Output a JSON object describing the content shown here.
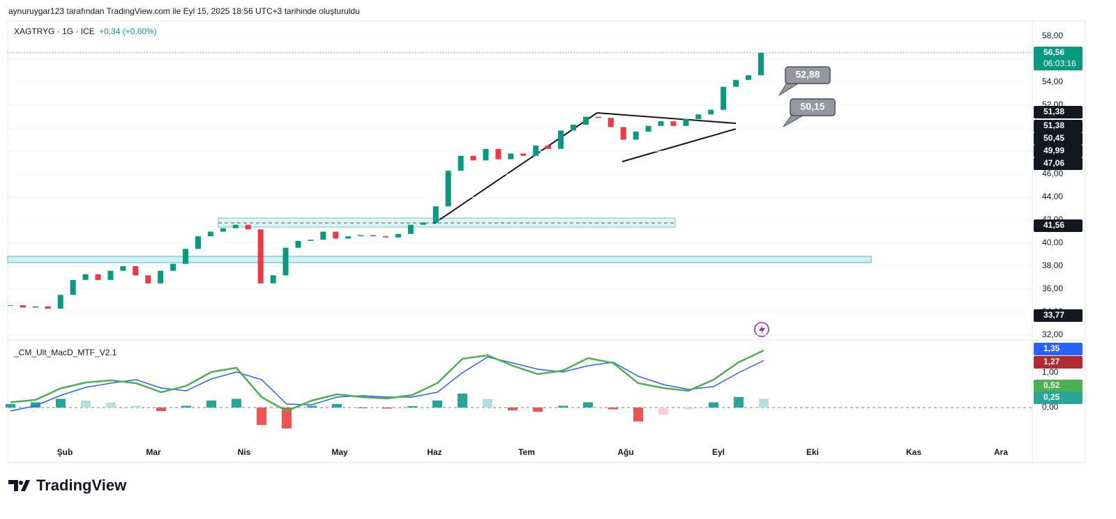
{
  "header": {
    "caption": "aynuruygar123 tarafından TradingView.com ile Eyl 15, 2025 18:56 UTC+3 tarihinde oluşturuldu"
  },
  "legend": {
    "symbol": "XAGTRYG · 1G · ICE",
    "change": "+0,34 (+0,60%)"
  },
  "chart_data": {
    "type": "candlestick",
    "ylim": [
      31.64,
      58.73
    ],
    "yticks": [
      {
        "value": 58,
        "label": "58,00"
      },
      {
        "value": 56,
        "label": "56,00"
      },
      {
        "value": 54,
        "label": "54,00"
      },
      {
        "value": 52,
        "label": "52,00"
      },
      {
        "value": 50,
        "label": "50,00"
      },
      {
        "value": 48,
        "label": "48,00"
      },
      {
        "value": 46,
        "label": "46,00"
      },
      {
        "value": 44,
        "label": "44,00"
      },
      {
        "value": 42,
        "label": "42,00"
      },
      {
        "value": 40,
        "label": "40,00"
      },
      {
        "value": 38,
        "label": "38,00"
      },
      {
        "value": 36,
        "label": "36,00"
      },
      {
        "value": 34,
        "label": "34,00"
      },
      {
        "value": 32,
        "label": "32,00"
      }
    ],
    "up_color": "#089981",
    "down_color": "#f23645",
    "closes": [
      34.6,
      34.4,
      34.5,
      34.3,
      35.5,
      36.8,
      37.3,
      36.8,
      37.6,
      38.0,
      37.2,
      36.5,
      37.6,
      38.2,
      39.5,
      40.6,
      41.0,
      41.3,
      41.6,
      41.2,
      36.5,
      37.2,
      39.6,
      40.2,
      40.3,
      41.0,
      40.4,
      40.6,
      40.7,
      40.6,
      40.5,
      40.8,
      41.6,
      41.8,
      43.2,
      46.3,
      47.6,
      47.2,
      48.2,
      47.3,
      47.8,
      47.6,
      48.5,
      48.2,
      49.8,
      50.3,
      51.0,
      50.9,
      50.1,
      49.0,
      49.7,
      50.2,
      50.6,
      50.2,
      50.8,
      51.2,
      51.6,
      53.6,
      54.2,
      54.6,
      56.56
    ],
    "categories": [
      "Şub",
      "Mar",
      "Nis",
      "May",
      "Haz",
      "Tem",
      "Ağu",
      "Eyl",
      "Eki",
      "Kas",
      "Ara"
    ],
    "badges": [
      {
        "value": 56.56,
        "label": "56,56",
        "time": "06:03:16",
        "color": "#089981"
      },
      {
        "value": 51.38,
        "label": "51,38",
        "color": "#131722"
      },
      {
        "value": 51.38,
        "label": "51,38",
        "color": "#131722"
      },
      {
        "value": 50.45,
        "label": "50,45",
        "color": "#131722"
      },
      {
        "value": 49.99,
        "label": "49,99",
        "color": "#131722"
      },
      {
        "value": 47.06,
        "label": "47,06",
        "color": "#131722"
      },
      {
        "value": 41.56,
        "label": "41,56",
        "color": "#131722"
      },
      {
        "value": 33.77,
        "label": "33,77",
        "color": "#131722"
      }
    ],
    "callouts": [
      {
        "value": 52.88,
        "label": "52,88"
      },
      {
        "value": 50.15,
        "label": "50,15"
      }
    ]
  },
  "macd": {
    "name": "_CM_Ult_MacD_MTF_V2.1",
    "ylim": [
      -1.56,
      1.94
    ],
    "yticks": [
      {
        "value": 1,
        "label": "1,00"
      },
      {
        "value": 0,
        "label": "0,00"
      }
    ],
    "series": [
      {
        "name": "MACD",
        "color": "#4caf50",
        "values": [
          0.15,
          0.22,
          0.55,
          0.72,
          0.78,
          0.7,
          0.44,
          0.62,
          1.02,
          1.14,
          0.3,
          -0.1,
          0.2,
          0.38,
          0.3,
          0.26,
          0.36,
          0.7,
          1.4,
          1.5,
          1.2,
          0.96,
          1.06,
          1.42,
          1.28,
          0.7,
          0.56,
          0.48,
          0.8,
          1.3,
          1.64
        ]
      },
      {
        "name": "Signal",
        "color": "#2962ff",
        "values": [
          -0.1,
          0.05,
          0.35,
          0.58,
          0.7,
          0.8,
          0.56,
          0.48,
          0.82,
          1.02,
          0.8,
          0.1,
          0.08,
          0.3,
          0.34,
          0.3,
          0.3,
          0.44,
          1.0,
          1.45,
          1.28,
          1.1,
          1.02,
          1.2,
          1.3,
          0.9,
          0.66,
          0.52,
          0.6,
          1.0,
          1.35
        ]
      }
    ],
    "histogram": [
      0.1,
      0.15,
      0.25,
      0.2,
      0.15,
      0.05,
      -0.1,
      0.05,
      0.2,
      0.25,
      -0.5,
      -0.6,
      0.05,
      0.1,
      -0.02,
      -0.03,
      0.04,
      0.2,
      0.4,
      0.25,
      -0.08,
      -0.12,
      0.05,
      0.15,
      -0.05,
      -0.4,
      -0.2,
      -0.05,
      0.15,
      0.3,
      0.25
    ],
    "badges": [
      {
        "value": 1.35,
        "label": "1,35",
        "color": "#2962ff"
      },
      {
        "value": 1.27,
        "label": "1,27",
        "color": "#b22833"
      },
      {
        "value": 0.52,
        "label": "0,52",
        "color": "#4caf50"
      },
      {
        "value": 0.25,
        "label": "0,25",
        "color": "#26a69a"
      }
    ]
  },
  "footer": {
    "brand": "TradingView"
  }
}
